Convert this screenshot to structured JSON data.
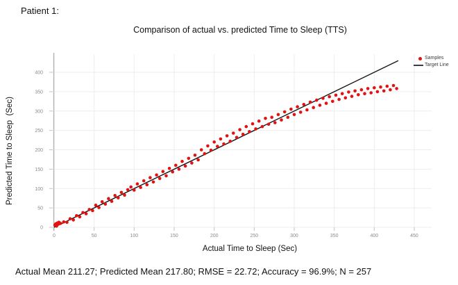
{
  "page": {
    "patient_label": "Patient 1:"
  },
  "footer": {
    "stats_text": "Actual Mean 211.27; Predicted Mean 217.80; RMSE = 22.72; Accuracy = 96.9%; N = 257"
  },
  "chart_data": {
    "type": "scatter",
    "title": "Comparison of actual vs. predicted Time to Sleep (TTS)",
    "xlabel": "Actual Time to Sleep (Sec)",
    "ylabel": "Predicted Time to Sleep  (Sec)",
    "x_ticks": [
      0,
      50,
      100,
      150,
      200,
      250,
      300,
      350,
      400,
      450
    ],
    "y_ticks": [
      0,
      50,
      100,
      150,
      200,
      250,
      300,
      350,
      400
    ],
    "xlim": [
      0,
      472
    ],
    "ylim": [
      0,
      447
    ],
    "grid": true,
    "colors": {
      "grid": "#ededed",
      "tick": "#c2c2c2",
      "axis": "#b0b0b0",
      "samples": "#e31212",
      "target": "#161616"
    },
    "legend": {
      "position": "top-right",
      "entries": [
        {
          "label": "Samples",
          "type": "marker",
          "color": "#e31212"
        },
        {
          "label": "Target Line",
          "type": "line",
          "color": "#3c3c46"
        }
      ]
    },
    "target_line": {
      "x": [
        0,
        430
      ],
      "y": [
        0,
        430
      ],
      "color": "#161616"
    },
    "samples": {
      "color": "#e31212",
      "n_reported": 257,
      "points": [
        [
          1,
          6
        ],
        [
          2,
          9
        ],
        [
          3,
          5
        ],
        [
          4,
          11
        ],
        [
          5,
          8
        ],
        [
          6,
          13
        ],
        [
          3,
          3
        ],
        [
          8,
          10
        ],
        [
          12,
          14
        ],
        [
          16,
          13
        ],
        [
          20,
          22
        ],
        [
          24,
          19
        ],
        [
          28,
          30
        ],
        [
          32,
          27
        ],
        [
          36,
          38
        ],
        [
          40,
          35
        ],
        [
          44,
          46
        ],
        [
          48,
          43
        ],
        [
          52,
          57
        ],
        [
          56,
          51
        ],
        [
          60,
          66
        ],
        [
          64,
          60
        ],
        [
          68,
          74
        ],
        [
          72,
          67
        ],
        [
          76,
          82
        ],
        [
          80,
          76
        ],
        [
          84,
          90
        ],
        [
          88,
          83
        ],
        [
          92,
          97
        ],
        [
          96,
          104
        ],
        [
          100,
          96
        ],
        [
          104,
          112
        ],
        [
          108,
          103
        ],
        [
          112,
          120
        ],
        [
          116,
          110
        ],
        [
          120,
          128
        ],
        [
          124,
          117
        ],
        [
          128,
          135
        ],
        [
          132,
          126
        ],
        [
          136,
          144
        ],
        [
          140,
          133
        ],
        [
          144,
          152
        ],
        [
          148,
          143
        ],
        [
          152,
          160
        ],
        [
          156,
          150
        ],
        [
          160,
          170
        ],
        [
          164,
          158
        ],
        [
          168,
          178
        ],
        [
          172,
          166
        ],
        [
          176,
          186
        ],
        [
          180,
          174
        ],
        [
          184,
          200
        ],
        [
          188,
          190
        ],
        [
          192,
          210
        ],
        [
          196,
          199
        ],
        [
          200,
          220
        ],
        [
          204,
          209
        ],
        [
          208,
          228
        ],
        [
          212,
          215
        ],
        [
          216,
          236
        ],
        [
          220,
          222
        ],
        [
          224,
          243
        ],
        [
          228,
          232
        ],
        [
          232,
          252
        ],
        [
          236,
          240
        ],
        [
          240,
          260
        ],
        [
          244,
          247
        ],
        [
          248,
          267
        ],
        [
          252,
          254
        ],
        [
          256,
          274
        ],
        [
          260,
          260
        ],
        [
          264,
          281
        ],
        [
          268,
          266
        ],
        [
          272,
          284
        ],
        [
          276,
          270
        ],
        [
          280,
          291
        ],
        [
          284,
          277
        ],
        [
          288,
          298
        ],
        [
          292,
          284
        ],
        [
          296,
          305
        ],
        [
          300,
          291
        ],
        [
          304,
          311
        ],
        [
          308,
          297
        ],
        [
          312,
          317
        ],
        [
          316,
          303
        ],
        [
          320,
          323
        ],
        [
          324,
          309
        ],
        [
          328,
          328
        ],
        [
          332,
          315
        ],
        [
          336,
          333
        ],
        [
          340,
          320
        ],
        [
          344,
          337
        ],
        [
          348,
          325
        ],
        [
          352,
          341
        ],
        [
          356,
          330
        ],
        [
          360,
          345
        ],
        [
          364,
          334
        ],
        [
          368,
          349
        ],
        [
          372,
          338
        ],
        [
          376,
          352
        ],
        [
          380,
          342
        ],
        [
          384,
          355
        ],
        [
          388,
          345
        ],
        [
          392,
          358
        ],
        [
          396,
          347
        ],
        [
          400,
          360
        ],
        [
          404,
          350
        ],
        [
          408,
          362
        ],
        [
          412,
          352
        ],
        [
          416,
          364
        ],
        [
          420,
          355
        ],
        [
          424,
          366
        ],
        [
          428,
          358
        ]
      ]
    }
  }
}
